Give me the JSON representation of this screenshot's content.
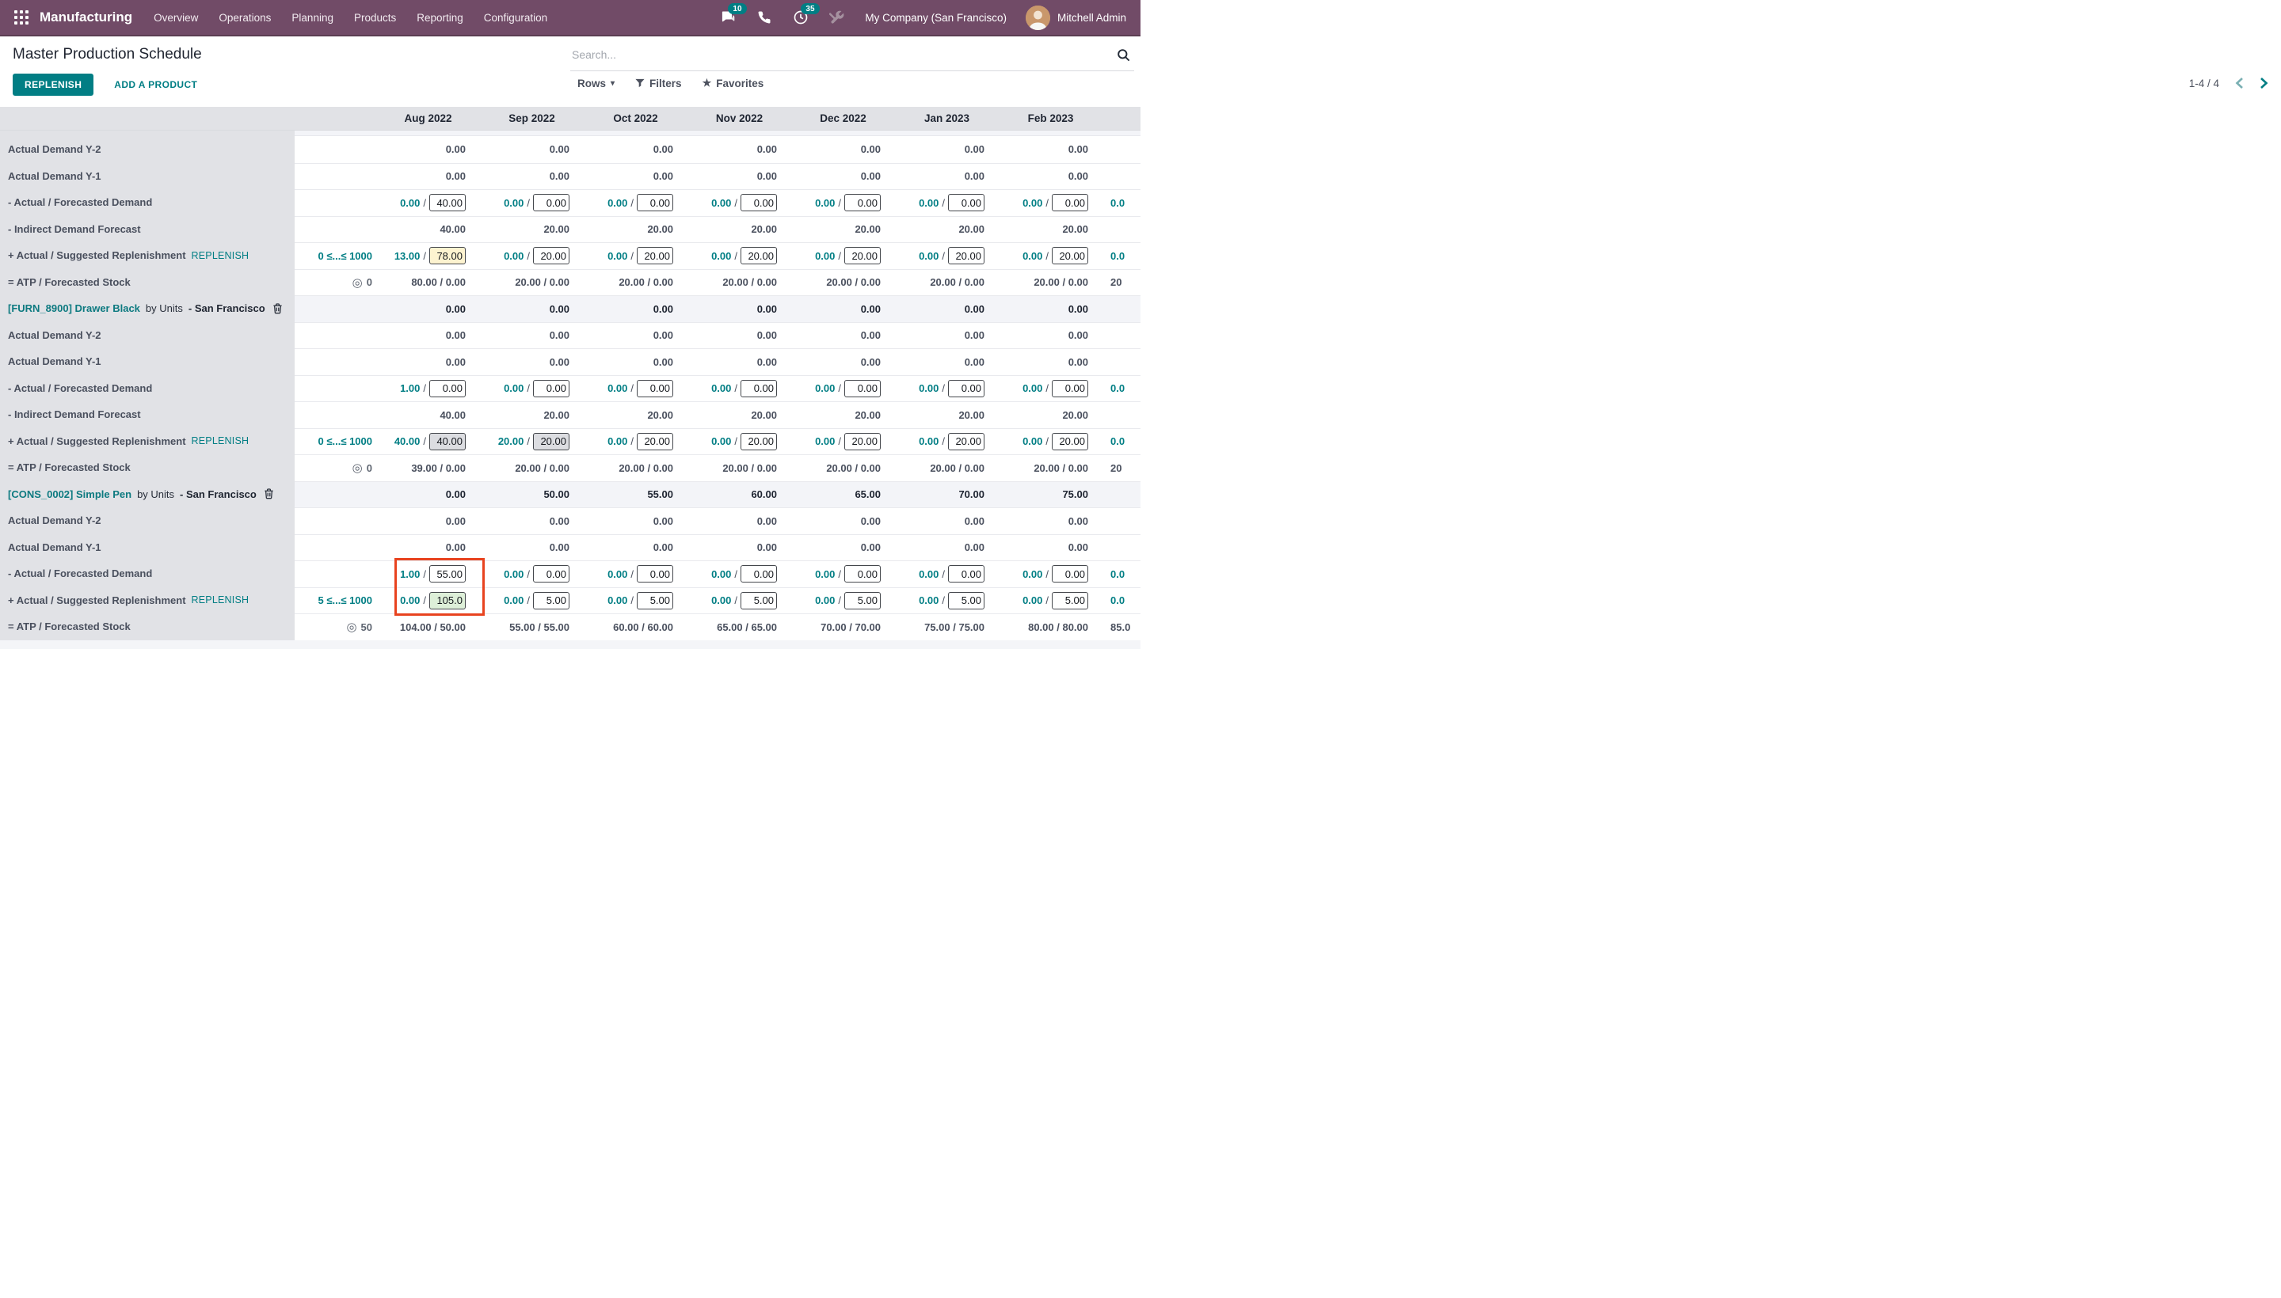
{
  "nav": {
    "brand": "Manufacturing",
    "menu": [
      "Overview",
      "Operations",
      "Planning",
      "Products",
      "Reporting",
      "Configuration"
    ],
    "badges": {
      "messages": "10",
      "activities": "35"
    },
    "company": "My Company (San Francisco)",
    "user": "Mitchell Admin"
  },
  "toolbar": {
    "title": "Master Production Schedule",
    "search_placeholder": "Search...",
    "replenish_label": "REPLENISH",
    "add_product_label": "ADD A PRODUCT",
    "rows_label": "Rows",
    "filters_label": "Filters",
    "favorites_label": "Favorites",
    "pager_text": "1-4 / 4"
  },
  "colors": {
    "accent_teal": "#017E84",
    "navbar_purple": "#714B67",
    "annotation_red": "#E8431F",
    "input_manual_yellow": "#FDF3D0",
    "input_launched_gray": "#DCDDE1",
    "input_suggest_green": "#DDEFD8"
  },
  "table": {
    "months": [
      "Aug 2022",
      "Sep 2022",
      "Oct 2022",
      "Nov 2022",
      "Dec 2022",
      "Jan 2023",
      "Feb 2023"
    ],
    "partial_month_label": "",
    "replenish_link_label": "REPLENISH",
    "separator": " / ",
    "rows": [
      {
        "type": "plain",
        "label": "Actual Demand Y-2",
        "cells": [
          "0.00",
          "0.00",
          "0.00",
          "0.00",
          "0.00",
          "0.00",
          "0.00"
        ],
        "partial": {
          "text": "",
          "color": "dark"
        }
      },
      {
        "type": "plain",
        "label": "Actual Demand Y-1",
        "cells": [
          "0.00",
          "0.00",
          "0.00",
          "0.00",
          "0.00",
          "0.00",
          "0.00"
        ],
        "partial": {
          "text": "",
          "color": "dark"
        }
      },
      {
        "type": "pair",
        "label": "- Actual / Forecasted Demand",
        "cells": [
          {
            "a": "0.00",
            "v": "40.00",
            "bg": "white"
          },
          {
            "a": "0.00",
            "v": "0.00",
            "bg": "white"
          },
          {
            "a": "0.00",
            "v": "0.00",
            "bg": "white"
          },
          {
            "a": "0.00",
            "v": "0.00",
            "bg": "white"
          },
          {
            "a": "0.00",
            "v": "0.00",
            "bg": "white"
          },
          {
            "a": "0.00",
            "v": "0.00",
            "bg": "white"
          },
          {
            "a": "0.00",
            "v": "0.00",
            "bg": "white"
          }
        ],
        "partial": {
          "text": "0.0",
          "color": "teal"
        }
      },
      {
        "type": "plain",
        "label": "- Indirect Demand Forecast",
        "cells": [
          "40.00",
          "20.00",
          "20.00",
          "20.00",
          "20.00",
          "20.00",
          "20.00"
        ],
        "partial": {
          "text": "",
          "color": "dark"
        }
      },
      {
        "type": "pair",
        "label": "+ Actual / Suggested Replenishment",
        "replenish": true,
        "constraint": {
          "kind": "range",
          "text": "0 ≤...≤ 1000"
        },
        "cells": [
          {
            "a": "13.00",
            "v": "78.00",
            "bg": "yellow"
          },
          {
            "a": "0.00",
            "v": "20.00",
            "bg": "white"
          },
          {
            "a": "0.00",
            "v": "20.00",
            "bg": "white"
          },
          {
            "a": "0.00",
            "v": "20.00",
            "bg": "white"
          },
          {
            "a": "0.00",
            "v": "20.00",
            "bg": "white"
          },
          {
            "a": "0.00",
            "v": "20.00",
            "bg": "white"
          },
          {
            "a": "0.00",
            "v": "20.00",
            "bg": "white"
          }
        ],
        "partial": {
          "text": "0.0",
          "color": "teal"
        }
      },
      {
        "type": "atp",
        "label": "= ATP / Forecasted Stock",
        "constraint": {
          "kind": "target",
          "text": "0"
        },
        "cells": [
          "80.00 / 0.00",
          "20.00 / 0.00",
          "20.00 / 0.00",
          "20.00 / 0.00",
          "20.00 / 0.00",
          "20.00 / 0.00",
          "20.00 / 0.00"
        ],
        "partial": {
          "text": "20",
          "color": "dark"
        }
      },
      {
        "type": "product",
        "code": "[FURN_8900] Drawer Black",
        "mid": "by Units",
        "loc": "- San Francisco",
        "cells": [
          "0.00",
          "0.00",
          "0.00",
          "0.00",
          "0.00",
          "0.00",
          "0.00"
        ],
        "partial": {
          "text": "",
          "color": "dark"
        }
      },
      {
        "type": "plain",
        "label": "Actual Demand Y-2",
        "cells": [
          "0.00",
          "0.00",
          "0.00",
          "0.00",
          "0.00",
          "0.00",
          "0.00"
        ],
        "partial": {
          "text": "",
          "color": "dark"
        }
      },
      {
        "type": "plain",
        "label": "Actual Demand Y-1",
        "cells": [
          "0.00",
          "0.00",
          "0.00",
          "0.00",
          "0.00",
          "0.00",
          "0.00"
        ],
        "partial": {
          "text": "",
          "color": "dark"
        }
      },
      {
        "type": "pair",
        "label": "- Actual / Forecasted Demand",
        "cells": [
          {
            "a": "1.00",
            "v": "0.00",
            "bg": "white"
          },
          {
            "a": "0.00",
            "v": "0.00",
            "bg": "white"
          },
          {
            "a": "0.00",
            "v": "0.00",
            "bg": "white"
          },
          {
            "a": "0.00",
            "v": "0.00",
            "bg": "white"
          },
          {
            "a": "0.00",
            "v": "0.00",
            "bg": "white"
          },
          {
            "a": "0.00",
            "v": "0.00",
            "bg": "white"
          },
          {
            "a": "0.00",
            "v": "0.00",
            "bg": "white"
          }
        ],
        "partial": {
          "text": "0.0",
          "color": "teal"
        }
      },
      {
        "type": "plain",
        "label": "- Indirect Demand Forecast",
        "cells": [
          "40.00",
          "20.00",
          "20.00",
          "20.00",
          "20.00",
          "20.00",
          "20.00"
        ],
        "partial": {
          "text": "",
          "color": "dark"
        }
      },
      {
        "type": "pair",
        "label": "+ Actual / Suggested Replenishment",
        "replenish": true,
        "constraint": {
          "kind": "range",
          "text": "0 ≤...≤ 1000"
        },
        "cells": [
          {
            "a": "40.00",
            "v": "40.00",
            "bg": "gray"
          },
          {
            "a": "20.00",
            "v": "20.00",
            "bg": "gray"
          },
          {
            "a": "0.00",
            "v": "20.00",
            "bg": "white"
          },
          {
            "a": "0.00",
            "v": "20.00",
            "bg": "white"
          },
          {
            "a": "0.00",
            "v": "20.00",
            "bg": "white"
          },
          {
            "a": "0.00",
            "v": "20.00",
            "bg": "white"
          },
          {
            "a": "0.00",
            "v": "20.00",
            "bg": "white"
          }
        ],
        "partial": {
          "text": "0.0",
          "color": "teal"
        }
      },
      {
        "type": "atp",
        "label": "= ATP / Forecasted Stock",
        "constraint": {
          "kind": "target",
          "text": "0"
        },
        "cells": [
          "39.00 / 0.00",
          "20.00 / 0.00",
          "20.00 / 0.00",
          "20.00 / 0.00",
          "20.00 / 0.00",
          "20.00 / 0.00",
          "20.00 / 0.00"
        ],
        "partial": {
          "text": "20",
          "color": "dark"
        }
      },
      {
        "type": "product",
        "code": "[CONS_0002] Simple Pen",
        "mid": "by Units",
        "loc": "- San Francisco",
        "cells": [
          "0.00",
          "50.00",
          "55.00",
          "60.00",
          "65.00",
          "70.00",
          "75.00"
        ],
        "partial": {
          "text": "",
          "color": "dark"
        }
      },
      {
        "type": "plain",
        "label": "Actual Demand Y-2",
        "cells": [
          "0.00",
          "0.00",
          "0.00",
          "0.00",
          "0.00",
          "0.00",
          "0.00"
        ],
        "partial": {
          "text": "",
          "color": "dark"
        }
      },
      {
        "type": "plain",
        "label": "Actual Demand Y-1",
        "cells": [
          "0.00",
          "0.00",
          "0.00",
          "0.00",
          "0.00",
          "0.00",
          "0.00"
        ],
        "partial": {
          "text": "",
          "color": "dark"
        }
      },
      {
        "type": "pair",
        "label": "- Actual / Forecasted Demand",
        "cells": [
          {
            "a": "1.00",
            "v": "55.00",
            "bg": "white"
          },
          {
            "a": "0.00",
            "v": "0.00",
            "bg": "white"
          },
          {
            "a": "0.00",
            "v": "0.00",
            "bg": "white"
          },
          {
            "a": "0.00",
            "v": "0.00",
            "bg": "white"
          },
          {
            "a": "0.00",
            "v": "0.00",
            "bg": "white"
          },
          {
            "a": "0.00",
            "v": "0.00",
            "bg": "white"
          },
          {
            "a": "0.00",
            "v": "0.00",
            "bg": "white"
          }
        ],
        "partial": {
          "text": "0.0",
          "color": "teal"
        }
      },
      {
        "type": "pair",
        "label": "+ Actual / Suggested Replenishment",
        "replenish": true,
        "constraint": {
          "kind": "range",
          "text": "5 ≤...≤ 1000"
        },
        "cells": [
          {
            "a": "0.00",
            "v": "105.0",
            "bg": "green"
          },
          {
            "a": "0.00",
            "v": "5.00",
            "bg": "white"
          },
          {
            "a": "0.00",
            "v": "5.00",
            "bg": "white"
          },
          {
            "a": "0.00",
            "v": "5.00",
            "bg": "white"
          },
          {
            "a": "0.00",
            "v": "5.00",
            "bg": "white"
          },
          {
            "a": "0.00",
            "v": "5.00",
            "bg": "white"
          },
          {
            "a": "0.00",
            "v": "5.00",
            "bg": "white"
          }
        ],
        "partial": {
          "text": "0.0",
          "color": "teal"
        }
      },
      {
        "type": "atp",
        "label": "= ATP / Forecasted Stock",
        "constraint": {
          "kind": "target",
          "text": "50"
        },
        "cells": [
          "104.00 / 50.00",
          "55.00 / 55.00",
          "60.00 / 60.00",
          "65.00 / 65.00",
          "70.00 / 70.00",
          "75.00 / 75.00",
          "80.00 / 80.00"
        ],
        "partial": {
          "text": "85.0",
          "color": "dark"
        }
      }
    ]
  }
}
